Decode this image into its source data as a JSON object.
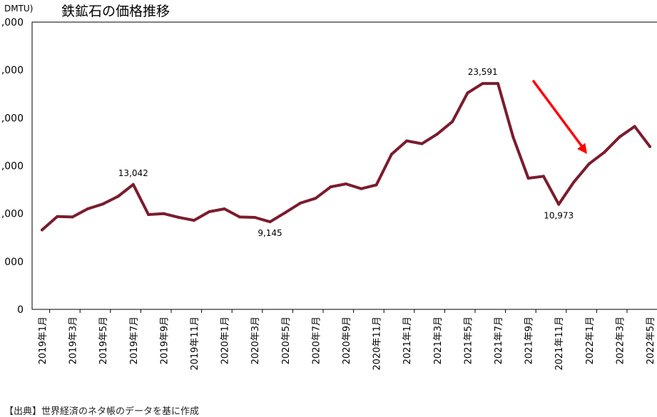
{
  "chart_data": {
    "type": "line",
    "title": "鉄鉱石の価格推移",
    "unit_label": "DMTU)",
    "ylim": [
      0,
      30000
    ],
    "yticks": [
      0,
      5000,
      10000,
      15000,
      20000,
      25000,
      30000
    ],
    "ytick_labels": [
      "0",
      "000",
      ",000",
      ",000",
      ",000",
      ",000",
      ",000"
    ],
    "grid": false,
    "legend": "none",
    "colors": {
      "line": "#7b1c2e",
      "arrow": "#ff0000"
    },
    "x": [
      "2019年1月",
      "2019年2月",
      "2019年3月",
      "2019年4月",
      "2019年5月",
      "2019年6月",
      "2019年7月",
      "2019年8月",
      "2019年9月",
      "2019年10月",
      "2019年11月",
      "2019年12月",
      "2020年1月",
      "2020年2月",
      "2020年3月",
      "2020年4月",
      "2020年5月",
      "2020年6月",
      "2020年7月",
      "2020年8月",
      "2020年9月",
      "2020年10月",
      "2020年11月",
      "2020年12月",
      "2021年1月",
      "2021年2月",
      "2021年3月",
      "2021年4月",
      "2021年5月",
      "2021年6月",
      "2021年7月",
      "2021年8月",
      "2021年9月",
      "2021年10月",
      "2021年11月",
      "2021年12月",
      "2022年1月",
      "2022年2月",
      "2022年3月",
      "2022年4月",
      "2022年5月"
    ],
    "xtick_labels": [
      "2019年1月",
      "2019年3月",
      "2019年5月",
      "2019年7月",
      "2019年9月",
      "2019年11月",
      "2020年1月",
      "2020年3月",
      "2020年5月",
      "2020年7月",
      "2020年9月",
      "2020年11月",
      "2021年1月",
      "2021年3月",
      "2021年5月",
      "2021年7月",
      "2021年9月",
      "2021年11月",
      "2022年1月",
      "2022年3月",
      "2022年5月"
    ],
    "series": [
      {
        "values": [
          8300,
          9700,
          9650,
          10500,
          11000,
          11800,
          13042,
          9900,
          10000,
          9600,
          9300,
          10200,
          10500,
          9650,
          9600,
          9145,
          10100,
          11100,
          11600,
          12800,
          13100,
          12600,
          13000,
          16200,
          17600,
          17300,
          18300,
          19600,
          22600,
          23591,
          23591,
          18000,
          13700,
          13900,
          10973,
          13300,
          15200,
          16400,
          18000,
          19100,
          17000
        ]
      }
    ],
    "annotations": [
      {
        "index": 6,
        "text": "13,042",
        "pos": "above"
      },
      {
        "index": 15,
        "text": "9,145",
        "pos": "below"
      },
      {
        "index": 29,
        "text": "23,591",
        "pos": "above"
      },
      {
        "index": 34,
        "text": "10,973",
        "pos": "below"
      }
    ]
  },
  "source_text": "【出典】世界経済のネタ帳のデータを基に作成"
}
